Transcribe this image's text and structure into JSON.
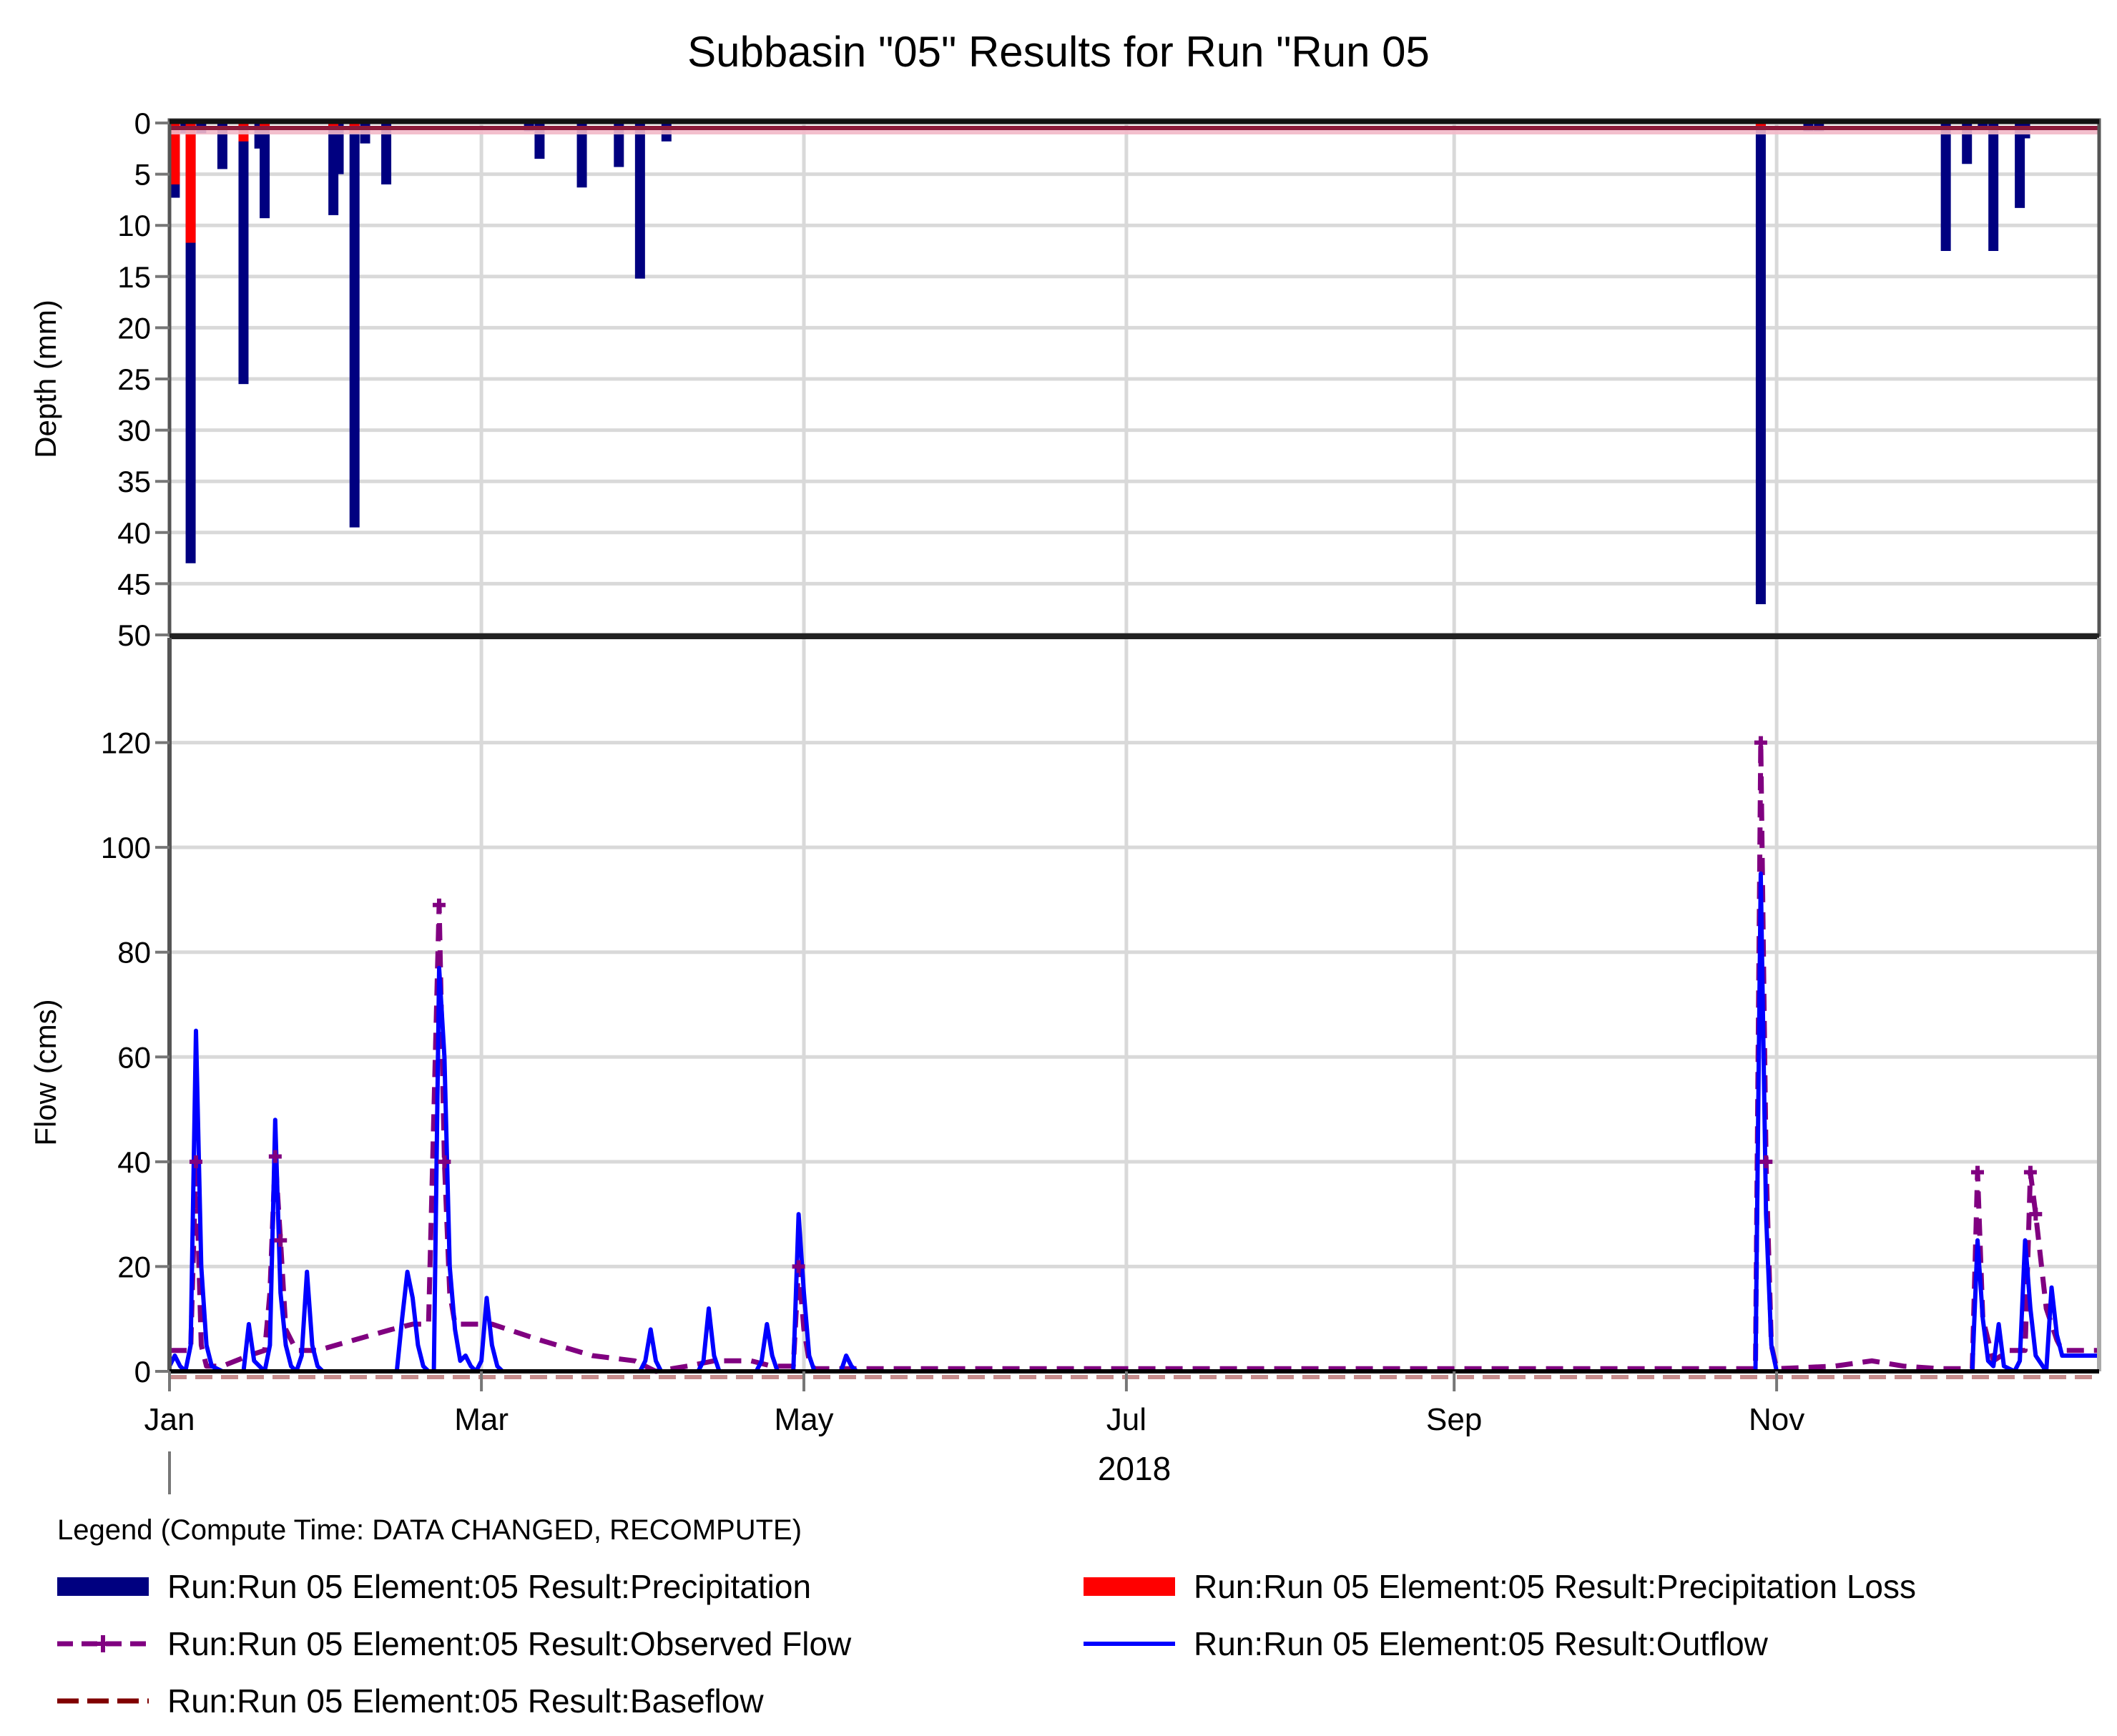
{
  "window": {
    "title": "Subbasin \"05\" Results for Run \"Run 05"
  },
  "colors": {
    "precipitation": "#000080",
    "precipitation_loss": "#ff0000",
    "observed_flow": "#800080",
    "outflow": "#0000ff",
    "baseflow": "#800000",
    "grid": "#d9d9d9",
    "axis": "#555555"
  },
  "legend": {
    "header": "Legend (Compute Time: DATA CHANGED, RECOMPUTE)",
    "items": [
      {
        "label": "Run:Run 05 Element:05 Result:Precipitation",
        "style": "bar",
        "color": "#000080"
      },
      {
        "label": "Run:Run 05 Element:05 Result:Precipitation Loss",
        "style": "bar",
        "color": "#ff0000"
      },
      {
        "label": "Run:Run 05 Element:05 Result:Observed Flow",
        "style": "dash-marker",
        "color": "#800080"
      },
      {
        "label": "Run:Run 05 Element:05 Result:Outflow",
        "style": "line",
        "color": "#0000ff"
      },
      {
        "label": "Run:Run 05 Element:05 Result:Baseflow",
        "style": "dash",
        "color": "#800000"
      }
    ]
  },
  "chart_data": [
    {
      "type": "bar",
      "title": "Subbasin \"05\" Results for Run \"Run 05",
      "ylabel": "Depth (mm)",
      "xlabel": "2018",
      "ylim": [
        0,
        50
      ],
      "y_inverted": true,
      "yticks": [
        0,
        5,
        10,
        15,
        20,
        25,
        30,
        35,
        40,
        45,
        50
      ],
      "x_tick_labels": [
        "Jan",
        "Mar",
        "May",
        "Jul",
        "Sep",
        "Nov"
      ],
      "x_tick_days": [
        0,
        59,
        120,
        181,
        243,
        304
      ],
      "grid": true,
      "x_unit": "day of year 2018",
      "series": [
        {
          "name": "Run:Run 05 Element:05 Result:Precipitation",
          "color": "#000080",
          "points": [
            {
              "day": 1,
              "value": 7.3
            },
            {
              "day": 3,
              "value": 1.0
            },
            {
              "day": 4,
              "value": 43.0
            },
            {
              "day": 6,
              "value": 1.0
            },
            {
              "day": 10,
              "value": 4.5
            },
            {
              "day": 14,
              "value": 25.5
            },
            {
              "day": 17,
              "value": 2.5
            },
            {
              "day": 18,
              "value": 9.3
            },
            {
              "day": 31,
              "value": 9.0
            },
            {
              "day": 32,
              "value": 5.0
            },
            {
              "day": 35,
              "value": 39.5
            },
            {
              "day": 37,
              "value": 2.0
            },
            {
              "day": 41,
              "value": 6.0
            },
            {
              "day": 68,
              "value": 0.8
            },
            {
              "day": 70,
              "value": 3.5
            },
            {
              "day": 78,
              "value": 6.3
            },
            {
              "day": 85,
              "value": 4.3
            },
            {
              "day": 89,
              "value": 15.2
            },
            {
              "day": 94,
              "value": 1.8
            },
            {
              "day": 301,
              "value": 47.0
            },
            {
              "day": 310,
              "value": 0.8
            },
            {
              "day": 312,
              "value": 0.8
            },
            {
              "day": 336,
              "value": 12.5
            },
            {
              "day": 340,
              "value": 4.0
            },
            {
              "day": 343,
              "value": 0.5
            },
            {
              "day": 345,
              "value": 12.5
            },
            {
              "day": 350,
              "value": 8.3
            },
            {
              "day": 351,
              "value": 1.5
            }
          ]
        },
        {
          "name": "Run:Run 05 Element:05 Result:Precipitation Loss",
          "color": "#ff0000",
          "points": [
            {
              "day": 1,
              "value": 6.0
            },
            {
              "day": 4,
              "value": 11.7
            },
            {
              "day": 14,
              "value": 1.8
            },
            {
              "day": 18,
              "value": 0.5
            },
            {
              "day": 31,
              "value": 0.4
            },
            {
              "day": 35,
              "value": 1.0
            },
            {
              "day": 301,
              "value": 0.5
            }
          ]
        }
      ]
    },
    {
      "type": "line",
      "ylabel": "Flow (cms)",
      "xlabel": "2018",
      "ylim": [
        0,
        140
      ],
      "yticks": [
        0,
        20,
        40,
        60,
        80,
        100,
        120
      ],
      "x_tick_labels": [
        "Jan",
        "Mar",
        "May",
        "Jul",
        "Sep",
        "Nov"
      ],
      "x_tick_days": [
        0,
        59,
        120,
        181,
        243,
        304
      ],
      "grid": true,
      "series": [
        {
          "name": "Run:Run 05 Element:05 Result:Outflow",
          "color": "#0000ff",
          "style": "solid",
          "points": [
            [
              0,
              1
            ],
            [
              1,
              3
            ],
            [
              2,
              1
            ],
            [
              3,
              0
            ],
            [
              4,
              5
            ],
            [
              5,
              65
            ],
            [
              6,
              20
            ],
            [
              7,
              5
            ],
            [
              8,
              1
            ],
            [
              10,
              0
            ],
            [
              14,
              0
            ],
            [
              15,
              9
            ],
            [
              16,
              2
            ],
            [
              18,
              0
            ],
            [
              19,
              5
            ],
            [
              20,
              48
            ],
            [
              21,
              15
            ],
            [
              22,
              5
            ],
            [
              23,
              1
            ],
            [
              24,
              0
            ],
            [
              25,
              3
            ],
            [
              26,
              19
            ],
            [
              27,
              5
            ],
            [
              28,
              1
            ],
            [
              29,
              0
            ],
            [
              43,
              0
            ],
            [
              44,
              10
            ],
            [
              45,
              19
            ],
            [
              46,
              14
            ],
            [
              47,
              5
            ],
            [
              48,
              1
            ],
            [
              49,
              0
            ],
            [
              50,
              0
            ],
            [
              51,
              77
            ],
            [
              52,
              60
            ],
            [
              53,
              20
            ],
            [
              54,
              8
            ],
            [
              55,
              2
            ],
            [
              56,
              3
            ],
            [
              57,
              1
            ],
            [
              58,
              0
            ],
            [
              59,
              2
            ],
            [
              60,
              14
            ],
            [
              61,
              5
            ],
            [
              62,
              1
            ],
            [
              63,
              0
            ],
            [
              89,
              0
            ],
            [
              90,
              2
            ],
            [
              91,
              8
            ],
            [
              92,
              2
            ],
            [
              93,
              0
            ],
            [
              100,
              0
            ],
            [
              101,
              2
            ],
            [
              102,
              12
            ],
            [
              103,
              3
            ],
            [
              104,
              0
            ],
            [
              111,
              0
            ],
            [
              112,
              2
            ],
            [
              113,
              9
            ],
            [
              114,
              3
            ],
            [
              115,
              0
            ],
            [
              118,
              0
            ],
            [
              119,
              30
            ],
            [
              120,
              15
            ],
            [
              121,
              3
            ],
            [
              122,
              0
            ],
            [
              127,
              0
            ],
            [
              128,
              3
            ],
            [
              129,
              1
            ],
            [
              130,
              0
            ],
            [
              300,
              0
            ],
            [
              301,
              95
            ],
            [
              302,
              30
            ],
            [
              303,
              5
            ],
            [
              304,
              0
            ],
            [
              341,
              0
            ],
            [
              342,
              25
            ],
            [
              343,
              10
            ],
            [
              344,
              2
            ],
            [
              345,
              1
            ],
            [
              346,
              9
            ],
            [
              347,
              1
            ],
            [
              349,
              0
            ],
            [
              350,
              2
            ],
            [
              351,
              25
            ],
            [
              352,
              12
            ],
            [
              353,
              3
            ],
            [
              355,
              0
            ],
            [
              356,
              16
            ],
            [
              357,
              7
            ],
            [
              358,
              3
            ],
            [
              365,
              3
            ]
          ]
        },
        {
          "name": "Run:Run 05 Element:05 Result:Observed Flow",
          "color": "#800080",
          "style": "dash-marker",
          "points": [
            [
              0,
              4
            ],
            [
              3,
              4
            ],
            [
              4,
              4
            ],
            [
              5,
              40
            ],
            [
              6,
              5
            ],
            [
              7,
              1
            ],
            [
              10,
              1
            ],
            [
              15,
              3
            ],
            [
              18,
              4
            ],
            [
              19,
              15
            ],
            [
              20,
              41
            ],
            [
              21,
              25
            ],
            [
              22,
              8
            ],
            [
              24,
              4
            ],
            [
              28,
              4
            ],
            [
              35,
              6
            ],
            [
              42,
              8
            ],
            [
              46,
              9
            ],
            [
              49,
              9
            ],
            [
              51,
              89
            ],
            [
              52,
              40
            ],
            [
              53,
              15
            ],
            [
              54,
              9
            ],
            [
              58,
              9
            ],
            [
              61,
              9
            ],
            [
              70,
              6
            ],
            [
              80,
              3
            ],
            [
              88,
              2
            ],
            [
              92,
              0
            ],
            [
              98,
              1
            ],
            [
              103,
              2
            ],
            [
              110,
              2
            ],
            [
              114,
              1
            ],
            [
              118,
              1
            ],
            [
              119,
              20
            ],
            [
              120,
              8
            ],
            [
              121,
              2
            ],
            [
              122,
              0.5
            ],
            [
              200,
              0.5
            ],
            [
              300,
              0.5
            ],
            [
              301,
              120
            ],
            [
              302,
              40
            ],
            [
              303,
              5
            ],
            [
              304,
              0.5
            ],
            [
              315,
              1
            ],
            [
              322,
              2
            ],
            [
              328,
              1
            ],
            [
              335,
              0.5
            ],
            [
              341,
              0.5
            ],
            [
              342,
              38
            ],
            [
              343,
              10
            ],
            [
              345,
              2
            ],
            [
              348,
              4
            ],
            [
              351,
              4
            ],
            [
              352,
              38
            ],
            [
              353,
              30
            ],
            [
              355,
              12
            ],
            [
              357,
              6
            ],
            [
              358,
              4
            ],
            [
              365,
              4
            ]
          ]
        },
        {
          "name": "Run:Run 05 Element:05 Result:Baseflow",
          "color": "#800000",
          "style": "dash",
          "points": [
            [
              0,
              0
            ],
            [
              365,
              0
            ]
          ]
        }
      ]
    }
  ],
  "axes": {
    "top": {
      "ylabel": "Depth (mm)",
      "ticks": [
        "0",
        "5",
        "10",
        "15",
        "20",
        "25",
        "30",
        "35",
        "40",
        "45",
        "50"
      ]
    },
    "bottom": {
      "ylabel": "Flow (cms)",
      "ticks": [
        "0",
        "20",
        "40",
        "60",
        "80",
        "100",
        "120"
      ]
    },
    "x": {
      "ticks": [
        "Jan",
        "Mar",
        "May",
        "Jul",
        "Sep",
        "Nov"
      ],
      "year_label": "2018"
    }
  }
}
